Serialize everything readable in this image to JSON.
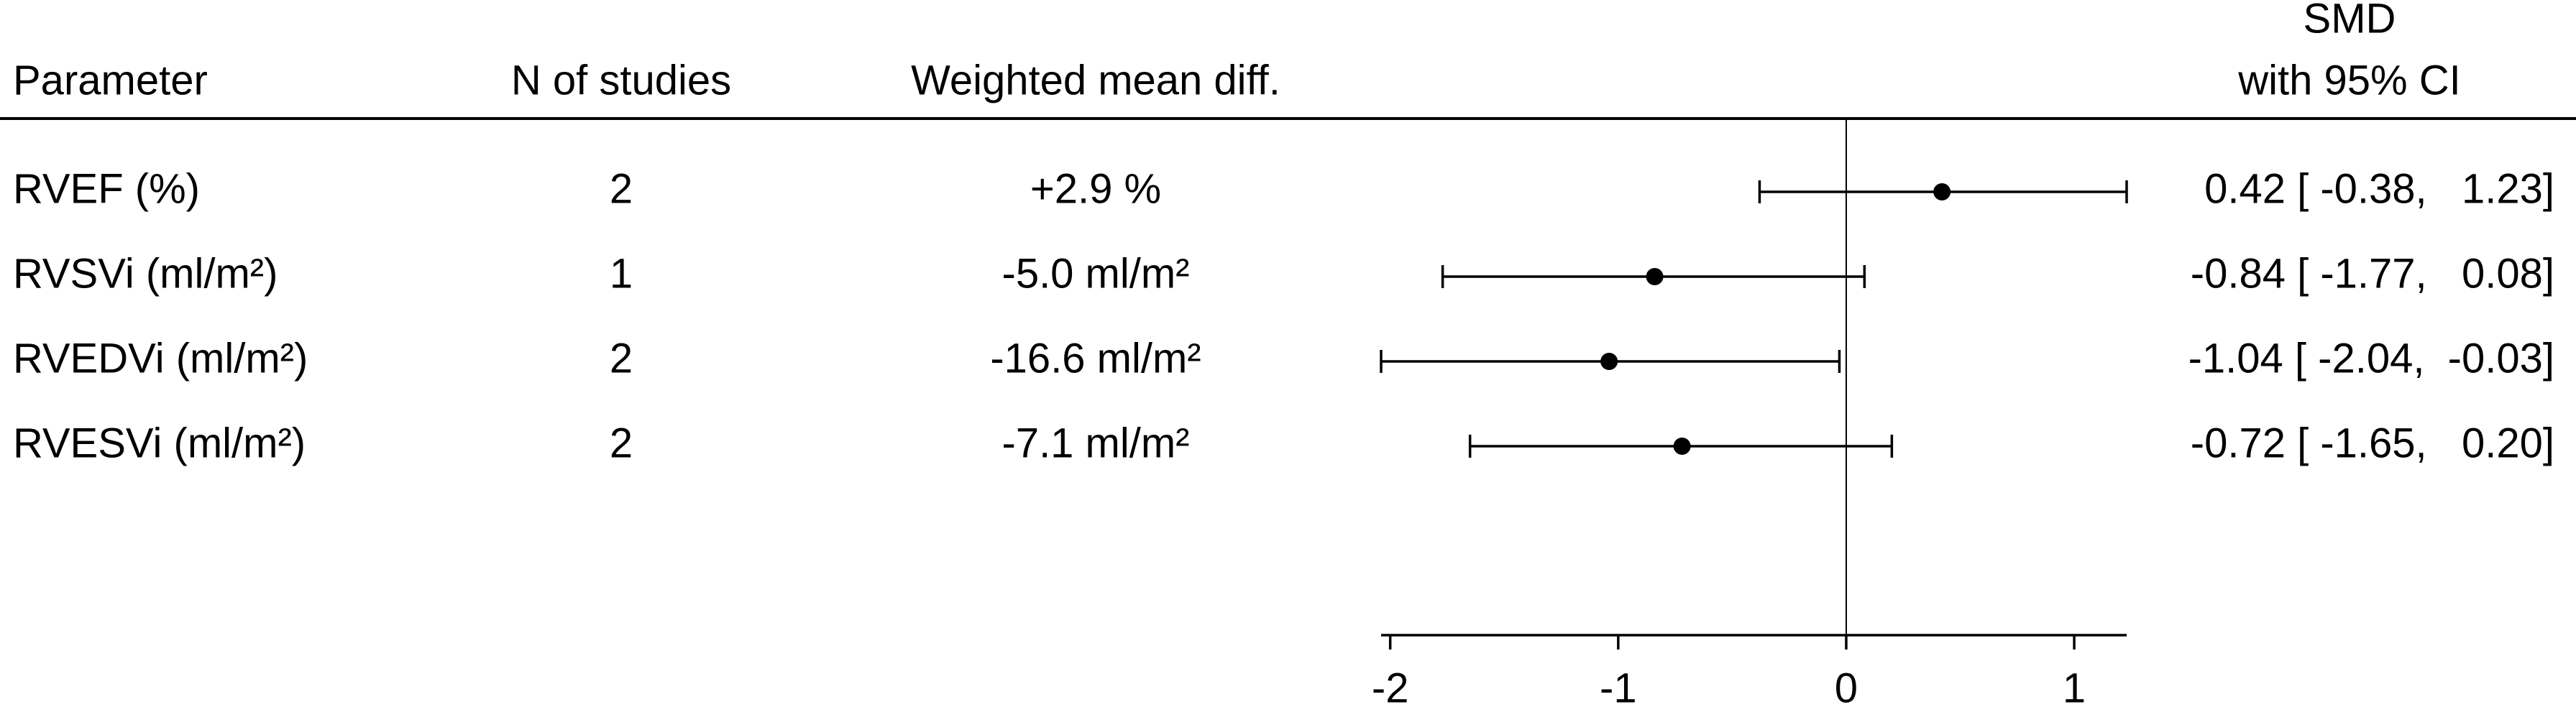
{
  "chart_data": {
    "type": "forest",
    "headers": {
      "parameter": "Parameter",
      "n_studies": "N of studies",
      "weighted_mean_diff": "Weighted mean diff.",
      "ci": [
        "SMD",
        "with 95% CI"
      ]
    },
    "categories": [
      "RVEF (%)",
      "RVSVi (ml/m²)",
      "RVEDVi (ml/m²)",
      "RVESVi (ml/m²)"
    ],
    "n_studies": [
      2,
      1,
      2,
      2
    ],
    "weighted_mean_diff": [
      "+2.9 %",
      "-5.0 ml/m²",
      "-16.6 ml/m²",
      "-7.1 ml/m²"
    ],
    "values": [
      0.42,
      -0.84,
      -1.04,
      -0.72
    ],
    "lower": [
      -0.38,
      -1.77,
      -2.04,
      -1.65
    ],
    "upper": [
      1.23,
      0.08,
      -0.03,
      0.2
    ],
    "value_labels": [
      "0.42 [ -0.38,   1.23]",
      "-0.84 [ -1.77,   0.08]",
      "-1.04 [ -2.04,  -0.03]",
      "-0.72 [ -1.65,   0.20]"
    ],
    "color": "#000000",
    "xlim": [
      -2.04,
      1.23
    ],
    "xticks": [
      -2,
      -1,
      0,
      1
    ],
    "refline": 0
  }
}
